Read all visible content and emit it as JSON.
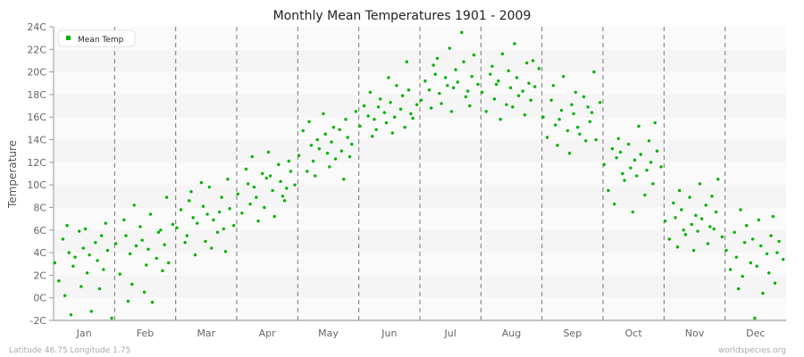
{
  "chart_data": {
    "type": "scatter",
    "title": "Monthly Mean Temperatures 1901 - 2009",
    "ylabel": "Temperature",
    "xlabel": "",
    "ylim": [
      -2,
      24
    ],
    "yticks": [
      "-2C",
      "0C",
      "2C",
      "4C",
      "6C",
      "8C",
      "10C",
      "12C",
      "14C",
      "16C",
      "18C",
      "20C",
      "22C",
      "24C"
    ],
    "categories": [
      "Jan",
      "Feb",
      "Mar",
      "Apr",
      "May",
      "Jun",
      "Jul",
      "Aug",
      "Sep",
      "Oct",
      "Nov",
      "Dec"
    ],
    "grid": "horizontal bands, dashed vertical month separators",
    "legend": {
      "position": "top-left",
      "entries": [
        "Mean Temp"
      ]
    },
    "series": [
      {
        "name": "Mean Temp",
        "color": "#00b200",
        "values": [
          [
            3.1,
            1.5,
            5.2,
            6.4,
            0.2,
            4.0,
            2.8,
            -1.5,
            3.6,
            5.9,
            4.4,
            1.0,
            6.1,
            3.8,
            2.2,
            -1.2,
            4.9,
            0.8,
            3.3,
            5.5,
            6.6,
            2.5,
            4.2,
            -1.8
          ],
          [
            4.8,
            2.1,
            6.9,
            -0.3,
            5.5,
            3.9,
            8.2,
            1.2,
            4.6,
            6.3,
            0.5,
            5.1,
            2.9,
            7.4,
            4.3,
            -0.4,
            3.5,
            6.0,
            5.8,
            2.4,
            8.9,
            4.7,
            3.1,
            6.5
          ],
          [
            6.2,
            7.8,
            4.9,
            8.6,
            5.5,
            9.4,
            3.8,
            7.1,
            6.6,
            10.2,
            5.0,
            8.1,
            7.4,
            4.4,
            9.8,
            6.9,
            5.8,
            8.9,
            7.6,
            6.1,
            10.5,
            4.1,
            7.9,
            6.4
          ],
          [
            9.2,
            7.5,
            11.4,
            8.3,
            10.1,
            12.5,
            8.9,
            9.8,
            6.8,
            11.0,
            10.6,
            8.0,
            12.9,
            9.5,
            10.8,
            7.2,
            11.8,
            9.0,
            10.3,
            8.6,
            12.1,
            9.7,
            11.2,
            10.0
          ],
          [
            12.6,
            14.8,
            11.2,
            13.5,
            15.6,
            12.1,
            14.0,
            10.8,
            13.2,
            16.3,
            12.8,
            14.5,
            11.6,
            15.1,
            13.8,
            12.3,
            14.9,
            10.5,
            13.0,
            15.8,
            12.5,
            14.2,
            13.6,
            16.5
          ],
          [
            15.2,
            17.0,
            16.1,
            14.3,
            18.2,
            15.8,
            16.9,
            14.9,
            17.6,
            16.4,
            19.5,
            15.5,
            17.3,
            16.0,
            14.6,
            18.8,
            16.7,
            15.1,
            17.9,
            20.9,
            16.3,
            18.4,
            15.9,
            17.1
          ],
          [
            17.5,
            19.2,
            18.4,
            20.6,
            16.8,
            19.8,
            18.1,
            21.2,
            17.2,
            19.5,
            22.1,
            18.8,
            16.5,
            20.2,
            18.6,
            19.1,
            23.5,
            17.8,
            20.9,
            18.3,
            19.6,
            17.0,
            21.5,
            18.9
          ],
          [
            18.2,
            16.5,
            19.8,
            17.6,
            20.5,
            18.9,
            15.8,
            19.2,
            21.6,
            17.1,
            18.6,
            20.1,
            16.9,
            19.5,
            22.5,
            17.9,
            18.3,
            20.8,
            16.2,
            19.0,
            21.0,
            17.5,
            18.7,
            20.3
          ],
          [
            16.0,
            14.2,
            17.5,
            15.3,
            18.8,
            13.5,
            16.6,
            15.8,
            19.6,
            14.8,
            17.1,
            12.8,
            16.3,
            15.1,
            18.2,
            14.5,
            17.8,
            16.9,
            13.9,
            15.6,
            20.0,
            16.4,
            14.0,
            17.3
          ],
          [
            11.8,
            9.5,
            13.2,
            12.4,
            8.3,
            14.1,
            11.0,
            12.9,
            10.4,
            13.6,
            7.6,
            11.5,
            12.2,
            15.2,
            10.8,
            12.7,
            9.1,
            13.9,
            11.3,
            12.0,
            15.5,
            10.1,
            13.0,
            11.6
          ],
          [
            6.8,
            5.2,
            8.4,
            4.5,
            7.1,
            9.5,
            6.0,
            7.8,
            5.6,
            8.9,
            4.2,
            6.5,
            7.3,
            10.1,
            5.9,
            7.0,
            8.2,
            6.3,
            4.8,
            9.0,
            7.6,
            6.1,
            10.5,
            5.4
          ],
          [
            4.2,
            2.5,
            5.8,
            0.8,
            3.6,
            7.8,
            4.9,
            1.9,
            6.4,
            3.1,
            -1.8,
            5.2,
            2.8,
            4.6,
            6.9,
            0.4,
            3.9,
            5.5,
            2.2,
            7.2,
            4.0,
            1.3,
            5.0,
            3.4
          ]
        ]
      }
    ]
  },
  "footer": {
    "left": "Latitude 46.75 Longitude 1.75",
    "right": "worldspecies.org"
  }
}
